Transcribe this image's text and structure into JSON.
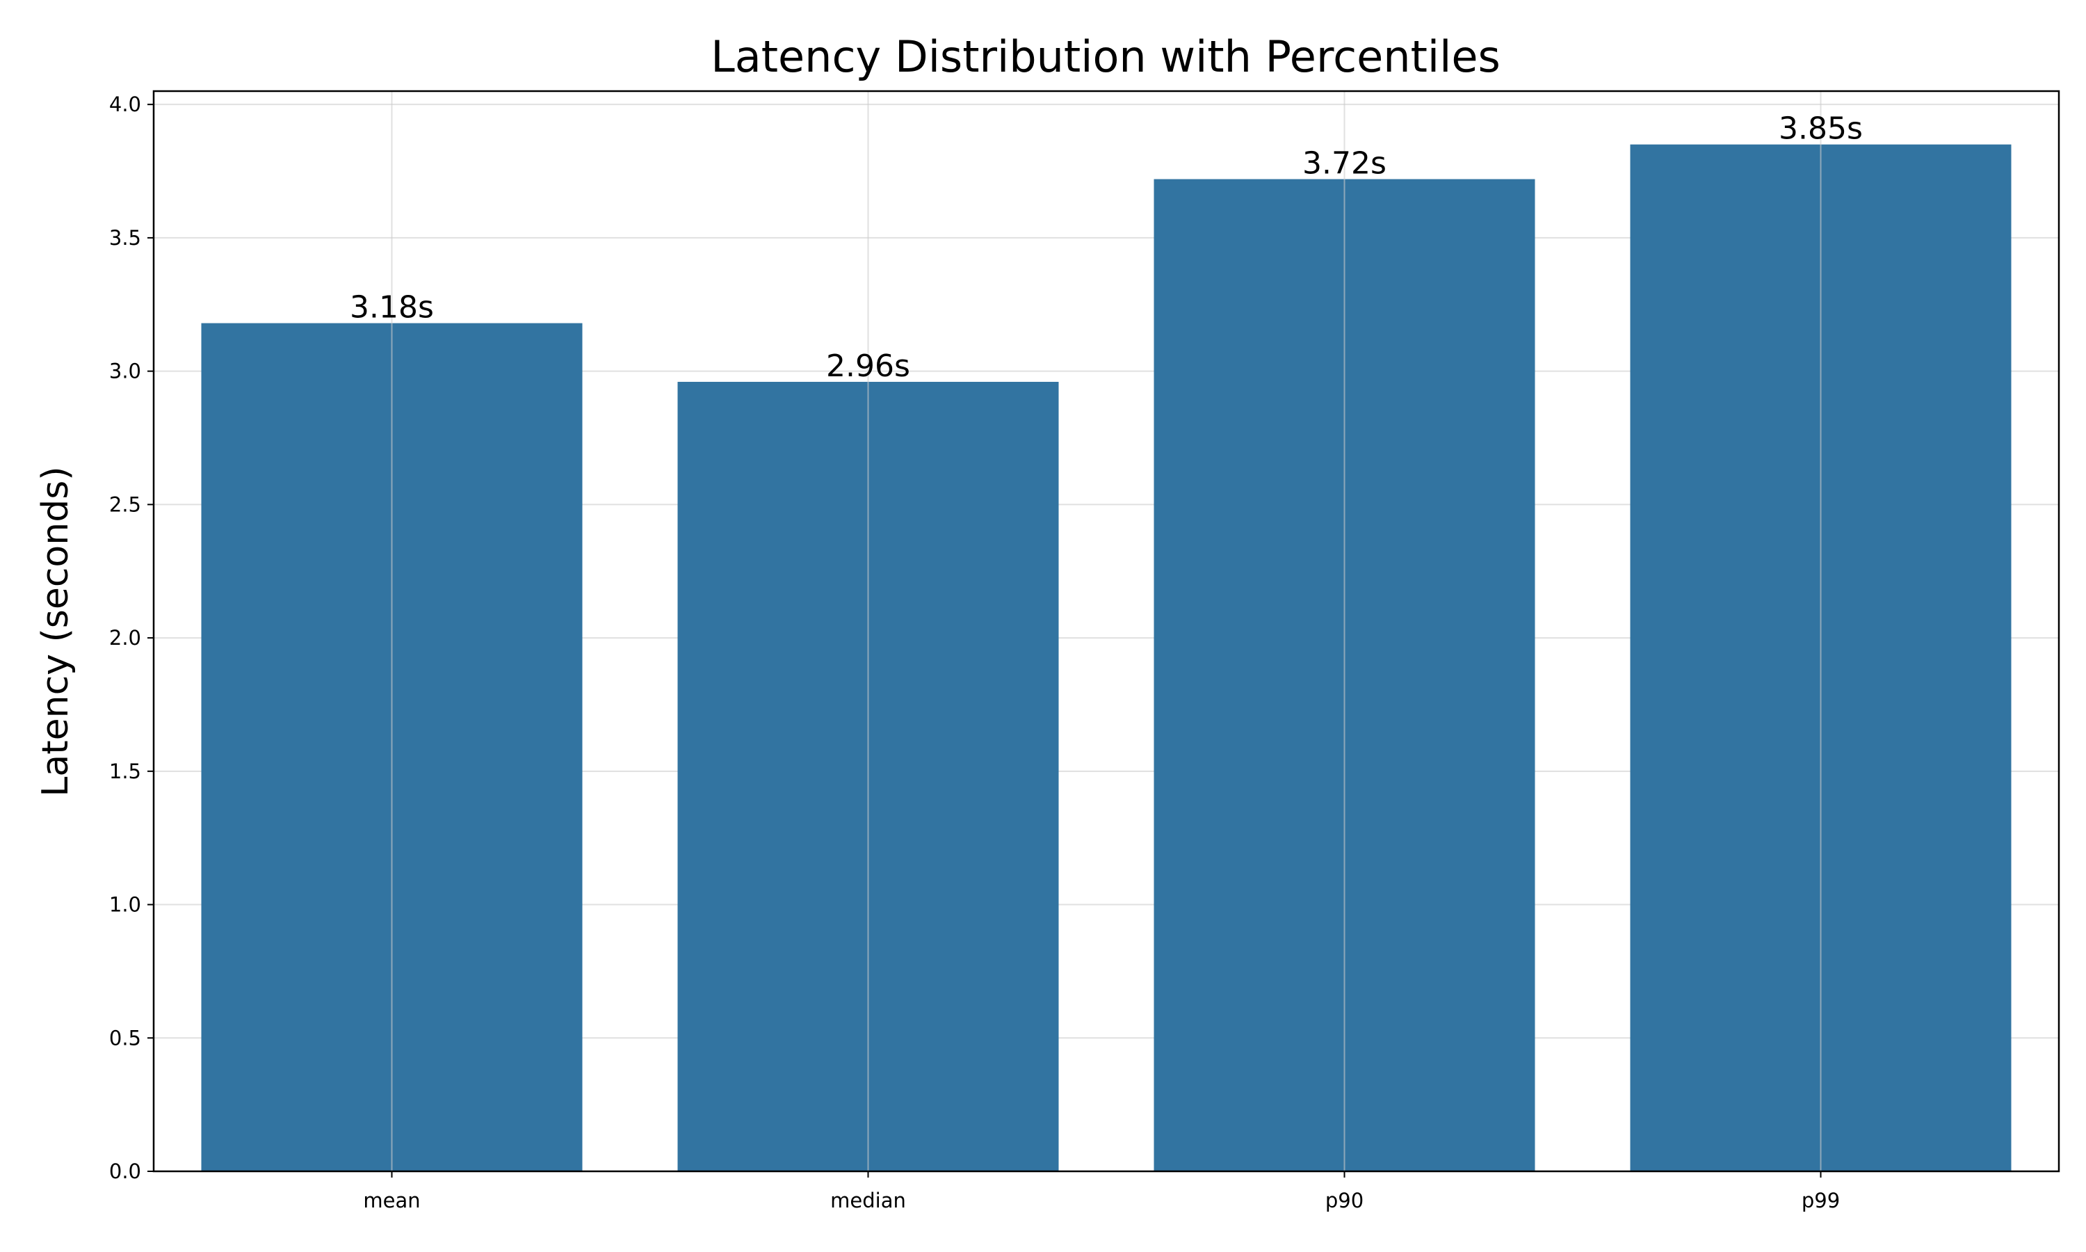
{
  "chart_data": {
    "type": "bar",
    "title": "Latency Distribution with Percentiles",
    "xlabel": "",
    "ylabel": "Latency (seconds)",
    "categories": [
      "mean",
      "median",
      "p90",
      "p99"
    ],
    "values": [
      3.18,
      2.96,
      3.72,
      3.85
    ],
    "value_labels": [
      "3.18s",
      "2.96s",
      "3.72s",
      "3.85s"
    ],
    "ylim": [
      0,
      4.05
    ],
    "yticks": [
      0.0,
      0.5,
      1.0,
      1.5,
      2.0,
      2.5,
      3.0,
      3.5,
      4.0
    ],
    "ytick_labels": [
      "0.0",
      "0.5",
      "1.0",
      "1.5",
      "2.0",
      "2.5",
      "3.0",
      "3.5",
      "4.0"
    ],
    "grid": true,
    "legend": false,
    "bar_color": "#3274a1"
  }
}
